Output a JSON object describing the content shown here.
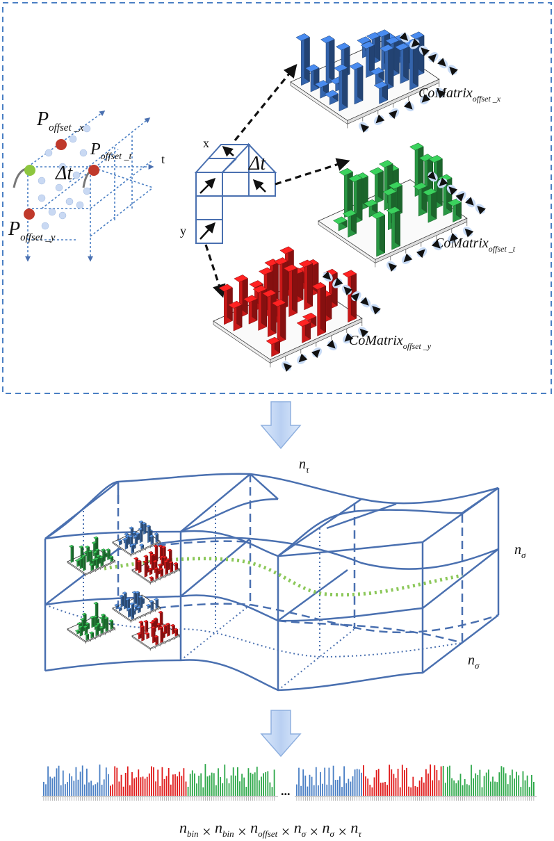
{
  "panel1": {
    "left_sketch": {
      "p_offset_x": {
        "base": "P",
        "sub": "offset _x"
      },
      "p_offset_t": {
        "base": "P",
        "sub": "offset _t"
      },
      "p_offset_y": {
        "base": "P",
        "sub": "offset _y"
      },
      "delta_t": "Δt",
      "axis_t": "t"
    },
    "offset_grid": {
      "label_x": "x",
      "label_y": "y",
      "delta_t": "Δt"
    },
    "comatrices": [
      {
        "key": "x",
        "base": "CoMatrix",
        "sub": "offset _x",
        "color": "#3a6fbf"
      },
      {
        "key": "t",
        "base": "CoMatrix",
        "sub": "offset _t",
        "color": "#2ea84a"
      },
      {
        "key": "y",
        "base": "CoMatrix",
        "sub": "offset _y",
        "color": "#e01b1b"
      }
    ]
  },
  "panel2": {
    "n_tau": {
      "base": "n",
      "sub": "τ"
    },
    "n_sigma_a": {
      "base": "n",
      "sub": "σ"
    },
    "n_sigma_b": {
      "base": "n",
      "sub": "σ"
    }
  },
  "panel3": {
    "ellipsis": "...",
    "formula": [
      {
        "base": "n",
        "sub": "bin"
      },
      {
        "op": "×"
      },
      {
        "base": "n",
        "sub": "bin"
      },
      {
        "op": "×"
      },
      {
        "base": "n",
        "sub": "offset"
      },
      {
        "op": "×"
      },
      {
        "base": "n",
        "sub": "σ"
      },
      {
        "op": "×"
      },
      {
        "base": "n",
        "sub": "σ"
      },
      {
        "op": "×"
      },
      {
        "base": "n",
        "sub": "τ"
      }
    ]
  },
  "colors": {
    "dash_border": "#4a7fc4",
    "grid_blue": "#4a70b0",
    "arrow_fill": "#c9dcf6",
    "blue": "#4a7fc4",
    "green": "#2ea84a",
    "red": "#e01b1b",
    "dotted_green": "#8cc85a"
  }
}
